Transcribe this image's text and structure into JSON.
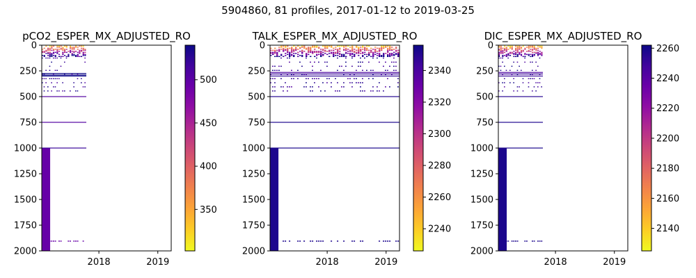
{
  "suptitle": "5904860, 81 profiles, 2017-01-12 to 2019-03-25",
  "colormap": "plasma",
  "chart_data": [
    {
      "type": "heatmap",
      "title": "pCO2_ESPER_MX_ADJUSTED_RO",
      "x_range": [
        "2017-01-12",
        "2019-03-25"
      ],
      "x_ticks": [
        "2018",
        "2019"
      ],
      "y_range": [
        2000,
        0
      ],
      "y_ticks": [
        0,
        250,
        500,
        750,
        1000,
        1250,
        1500,
        1750,
        2000
      ],
      "data_time_extent": [
        "2017-01-12",
        "2017-10-15"
      ],
      "colorbar": {
        "range": [
          302,
          540
        ],
        "ticks": [
          350,
          400,
          450,
          500
        ]
      },
      "deep_value": 495,
      "horizontal_bands": [
        {
          "depth": 275,
          "value": 540
        },
        {
          "depth": 290,
          "value": 540
        },
        {
          "depth": 300,
          "value": 540
        },
        {
          "depth": 500,
          "value": 505
        },
        {
          "depth": 750,
          "value": 505
        },
        {
          "depth": 1000,
          "value": 520
        }
      ]
    },
    {
      "type": "heatmap",
      "title": "TALK_ESPER_MX_ADJUSTED_RO",
      "x_range": [
        "2017-01-12",
        "2019-03-25"
      ],
      "x_ticks": [
        "2018",
        "2019"
      ],
      "y_range": [
        2000,
        0
      ],
      "y_ticks": [
        0,
        250,
        500,
        750,
        1000,
        1250,
        1500,
        1750,
        2000
      ],
      "data_time_extent": [
        "2017-01-12",
        "2019-03-25"
      ],
      "colorbar": {
        "range": [
          2226,
          2356
        ],
        "ticks": [
          2240,
          2260,
          2280,
          2300,
          2320,
          2340
        ]
      },
      "deep_value": 2352,
      "horizontal_bands": [
        {
          "depth": 265,
          "value": 2340
        },
        {
          "depth": 280,
          "value": 2345
        },
        {
          "depth": 300,
          "value": 2348
        },
        {
          "depth": 500,
          "value": 2350
        },
        {
          "depth": 750,
          "value": 2352
        },
        {
          "depth": 1000,
          "value": 2353
        }
      ]
    },
    {
      "type": "heatmap",
      "title": "DIC_ESPER_MX_ADJUSTED_RO",
      "x_range": [
        "2017-01-12",
        "2019-03-25"
      ],
      "x_ticks": [
        "2018",
        "2019"
      ],
      "y_range": [
        2000,
        0
      ],
      "y_ticks": [
        0,
        250,
        500,
        750,
        1000,
        1250,
        1500,
        1750,
        2000
      ],
      "data_time_extent": [
        "2017-01-12",
        "2017-10-15"
      ],
      "colorbar": {
        "range": [
          2125,
          2262
        ],
        "ticks": [
          2140,
          2160,
          2180,
          2200,
          2220,
          2240,
          2260
        ]
      },
      "deep_value": 2258,
      "horizontal_bands": [
        {
          "depth": 265,
          "value": 2245
        },
        {
          "depth": 280,
          "value": 2250
        },
        {
          "depth": 300,
          "value": 2252
        },
        {
          "depth": 500,
          "value": 2255
        },
        {
          "depth": 750,
          "value": 2257
        },
        {
          "depth": 1000,
          "value": 2258
        }
      ]
    }
  ]
}
